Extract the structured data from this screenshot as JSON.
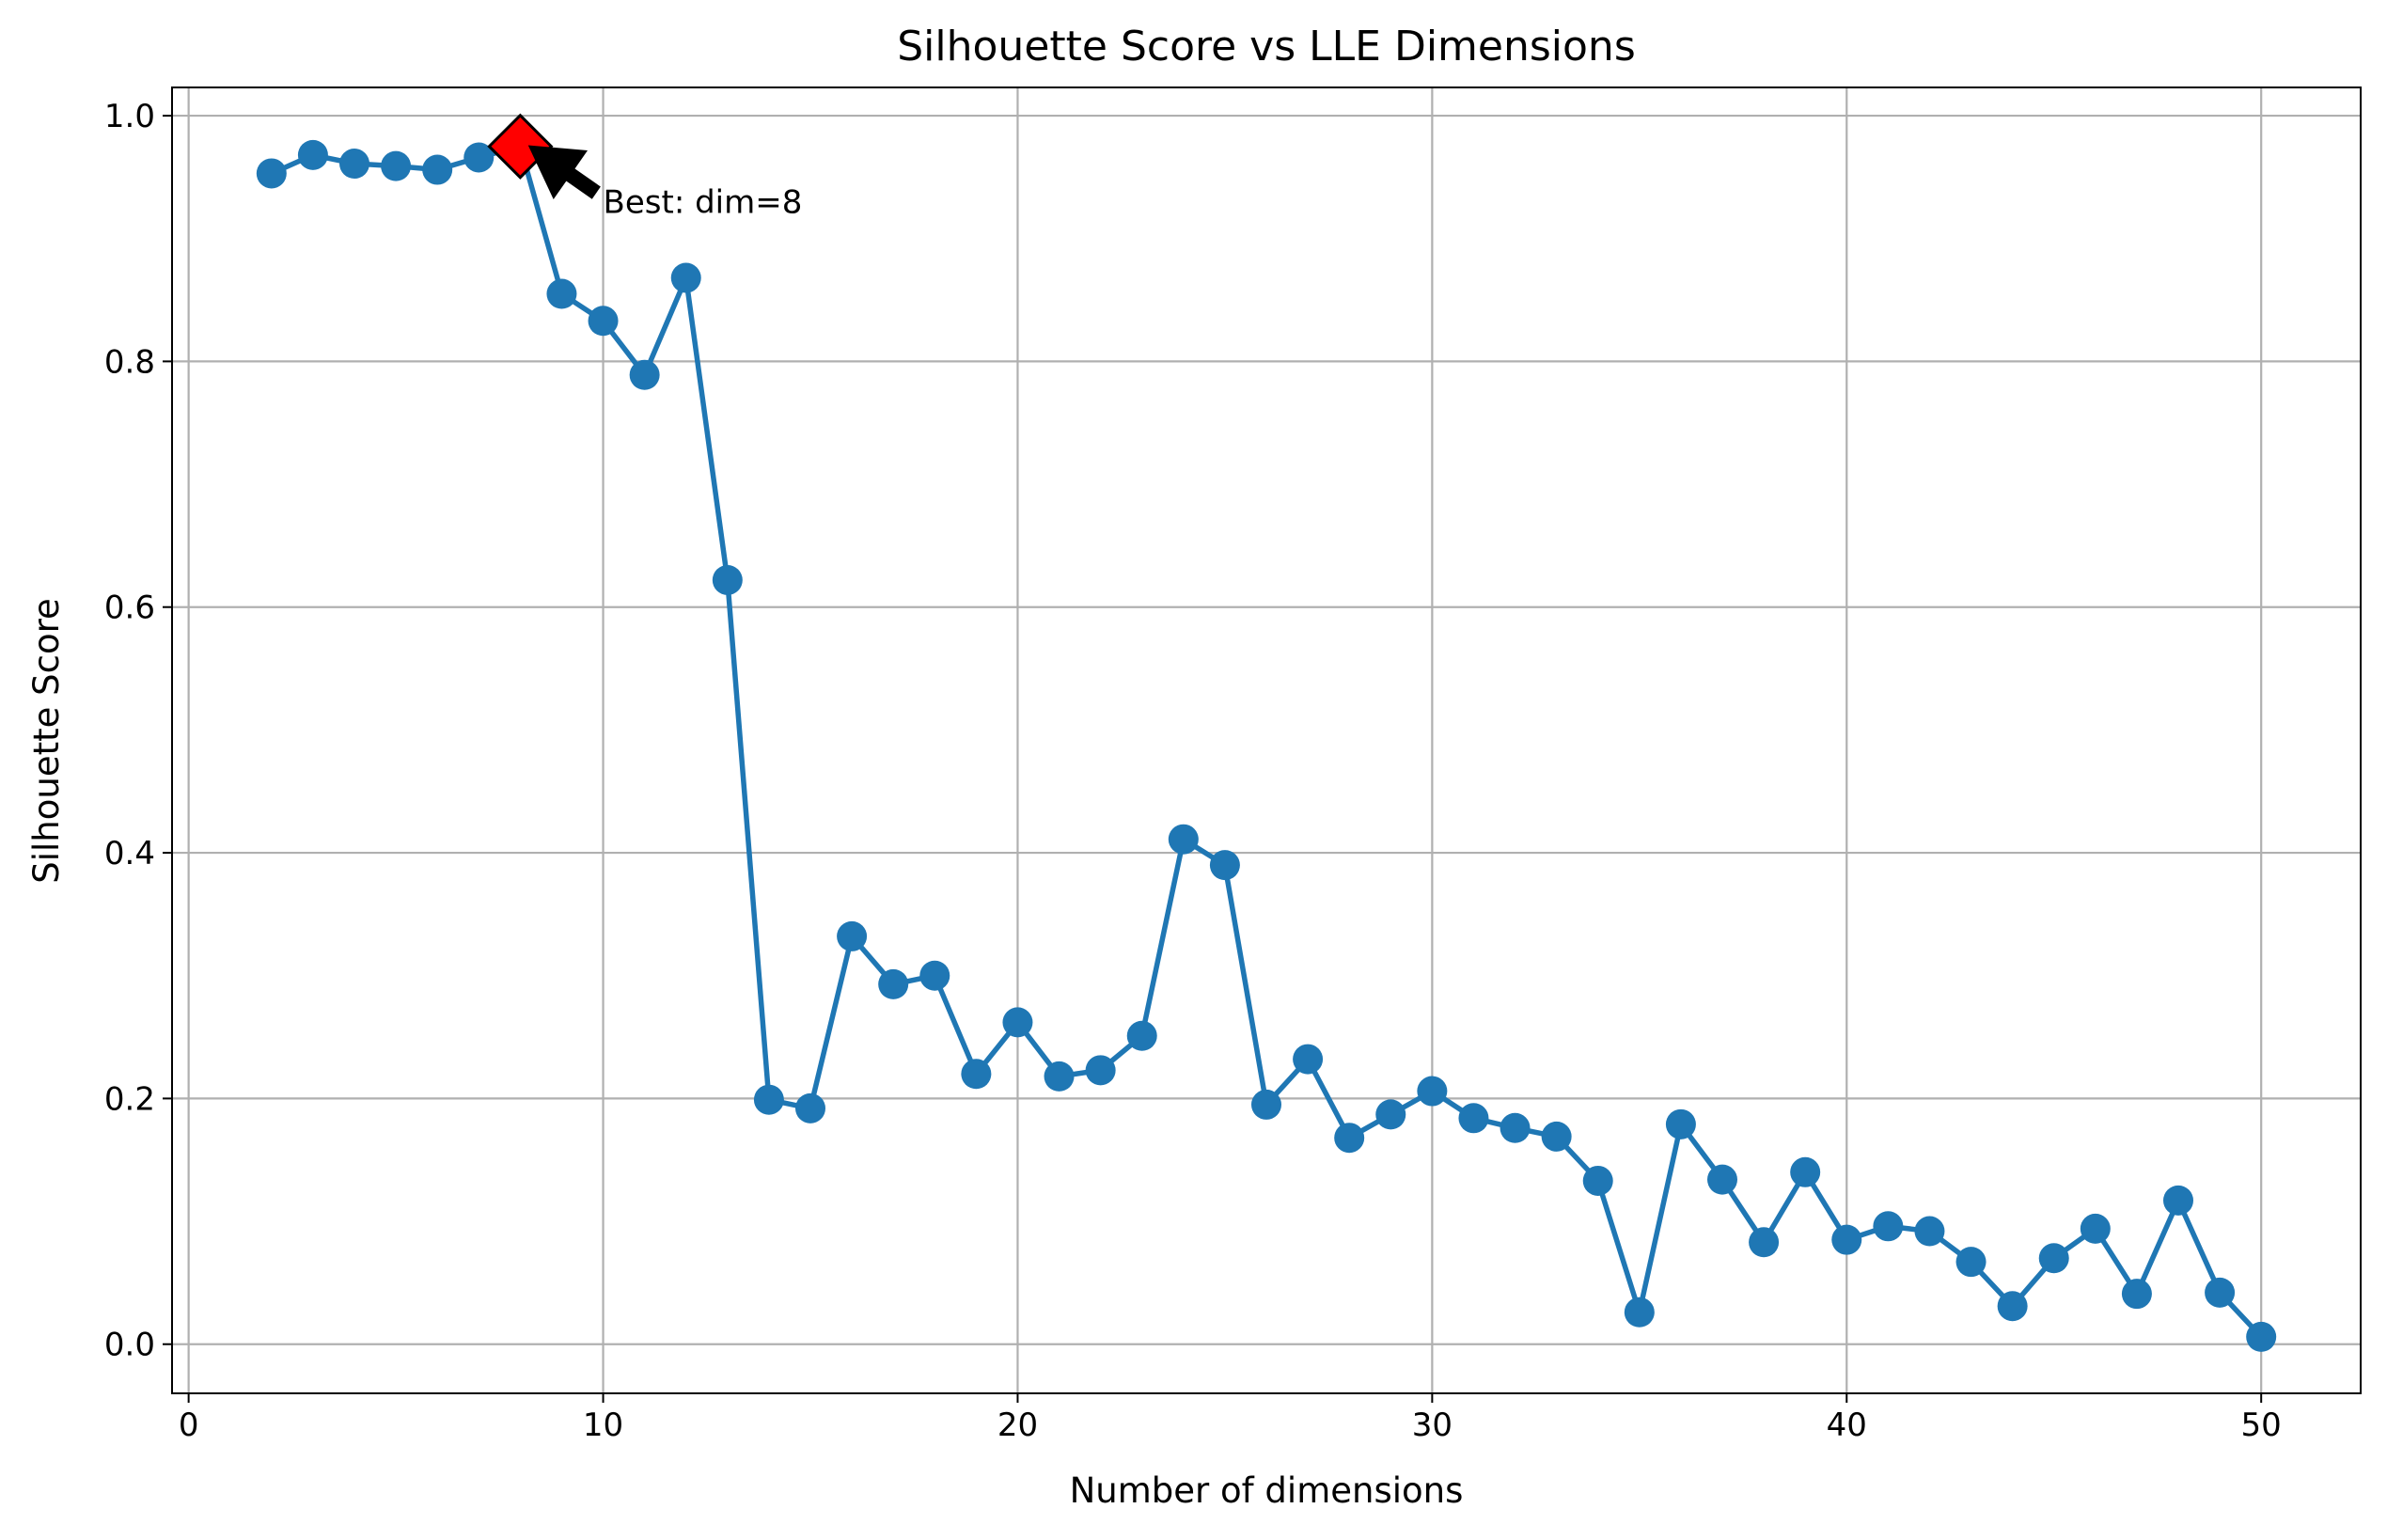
{
  "chart_data": {
    "type": "line",
    "title": "Silhouette Score vs LLE Dimensions",
    "xlabel": "Number of dimensions",
    "ylabel": "Silhouette Score",
    "xlim": [
      -0.4,
      52.4
    ],
    "ylim": [
      -0.04,
      1.023
    ],
    "xticks": [
      0,
      10,
      20,
      30,
      40,
      50
    ],
    "xtick_labels": [
      "0",
      "10",
      "20",
      "30",
      "40",
      "50"
    ],
    "yticks": [
      0.0,
      0.2,
      0.4,
      0.6,
      0.8,
      1.0
    ],
    "ytick_labels": [
      "0.0",
      "0.2",
      "0.4",
      "0.6",
      "0.8",
      "1.0"
    ],
    "grid": true,
    "series": [
      {
        "color": "#1f77b4",
        "marker": "circle",
        "x": [
          2,
          3,
          4,
          5,
          6,
          7,
          8,
          9,
          10,
          11,
          12,
          13,
          14,
          15,
          16,
          17,
          18,
          19,
          20,
          21,
          22,
          23,
          24,
          25,
          26,
          27,
          28,
          29,
          30,
          31,
          32,
          33,
          34,
          35,
          36,
          37,
          38,
          39,
          40,
          41,
          42,
          43,
          44,
          45,
          46,
          47,
          48,
          49,
          50
        ],
        "y": [
          0.953,
          0.968,
          0.961,
          0.959,
          0.956,
          0.966,
          0.975,
          0.855,
          0.833,
          0.789,
          0.868,
          0.622,
          0.199,
          0.192,
          0.332,
          0.293,
          0.3,
          0.22,
          0.262,
          0.218,
          0.223,
          0.251,
          0.411,
          0.39,
          0.195,
          0.232,
          0.168,
          0.187,
          0.206,
          0.184,
          0.176,
          0.169,
          0.133,
          0.026,
          0.179,
          0.134,
          0.083,
          0.14,
          0.085,
          0.096,
          0.092,
          0.067,
          0.031,
          0.07,
          0.094,
          0.041,
          0.117,
          0.042,
          0.006
        ]
      }
    ],
    "best_point": {
      "x": 8,
      "y": 0.975,
      "color": "#ff0000",
      "marker": "diamond"
    },
    "annotation": {
      "text": "Best: dim=8",
      "text_x": 10,
      "text_y": 0.93
    }
  }
}
